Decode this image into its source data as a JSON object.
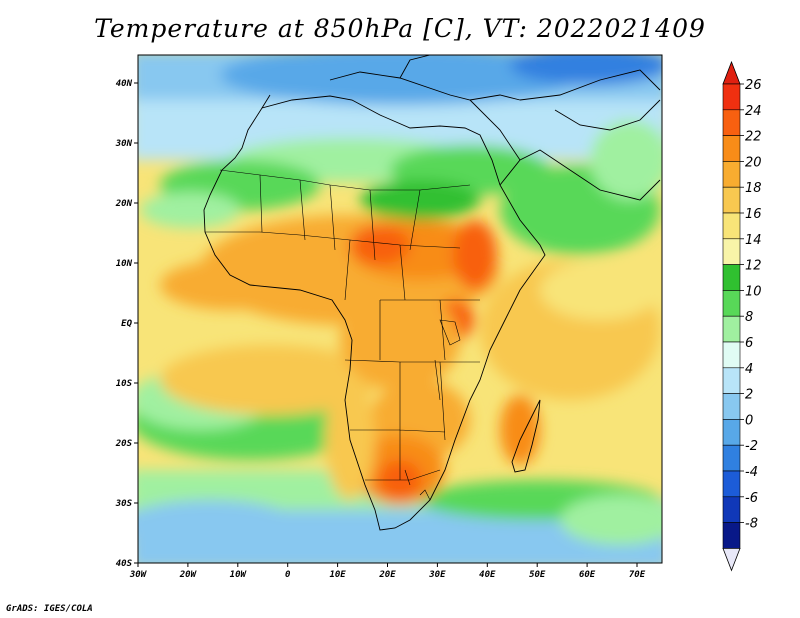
{
  "title": "Temperature at 850hPa [C], VT: 2022021409",
  "footer": "GrADS: IGES/COLA",
  "map": {
    "lon_range": [
      -30,
      75
    ],
    "lat_range": [
      -40,
      45
    ],
    "lat_labels": [
      "40N",
      "30N",
      "20N",
      "10N",
      "EQ",
      "10S",
      "20S",
      "30S",
      "40S"
    ],
    "lon_labels": [
      "30W",
      "20W",
      "10W",
      "0",
      "10E",
      "20E",
      "30E",
      "40E",
      "50E",
      "60E",
      "70E"
    ]
  },
  "colorbar": {
    "labels": [
      "26",
      "24",
      "22",
      "20",
      "18",
      "16",
      "14",
      "12",
      "10",
      "8",
      "6",
      "4",
      "2",
      "0",
      "-2",
      "-4",
      "-6",
      "-8"
    ],
    "colors": [
      "#f03010",
      "#f86010",
      "#f88c18",
      "#f8ac30",
      "#f8c850",
      "#f8e478",
      "#f8f4a8",
      "#30c030",
      "#58d858",
      "#a0f0a0",
      "#e0fcf4",
      "#b8e4f8",
      "#88c8f0",
      "#58a8e8",
      "#3080e0",
      "#1c5cd8",
      "#1038b8",
      "#081888"
    ],
    "top_arrow_color": "#e02010",
    "bottom_arrow_color": "#e8e8f8"
  }
}
